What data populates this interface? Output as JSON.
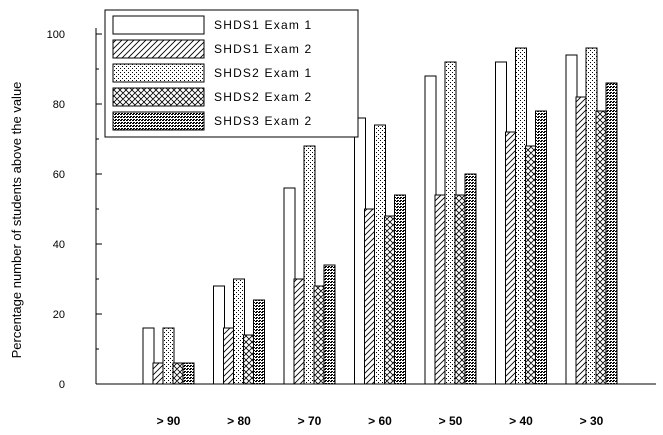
{
  "chart_data": {
    "type": "bar",
    "title": "",
    "xlabel": "",
    "ylabel": "Percentage number of students above the value",
    "categories": [
      "> 90",
      "> 80",
      "> 70",
      "> 60",
      "> 50",
      "> 40",
      "> 30"
    ],
    "ylim": [
      0,
      105
    ],
    "yticks": [
      0,
      20,
      40,
      60,
      80,
      100
    ],
    "grid": false,
    "legend_position": "top-left",
    "series": [
      {
        "name": "SHDS1 Exam 1",
        "pattern": "blank",
        "values": [
          16,
          28,
          56,
          76,
          88,
          92,
          94
        ]
      },
      {
        "name": "SHDS1 Exam 2",
        "pattern": "diagonal-hatch",
        "values": [
          6,
          16,
          30,
          50,
          54,
          72,
          82
        ]
      },
      {
        "name": "SHDS2 Exam 1",
        "pattern": "sparse-dots",
        "values": [
          16,
          30,
          68,
          74,
          92,
          96,
          96
        ]
      },
      {
        "name": "SHDS2 Exam 2",
        "pattern": "cross-hatch",
        "values": [
          6,
          14,
          28,
          48,
          54,
          68,
          78
        ]
      },
      {
        "name": "SHDS3 Exam 2",
        "pattern": "dense-dots",
        "values": [
          6,
          24,
          34,
          54,
          60,
          78,
          86
        ]
      }
    ],
    "colors": {
      "stroke": "#000000",
      "background": "#ffffff"
    }
  }
}
